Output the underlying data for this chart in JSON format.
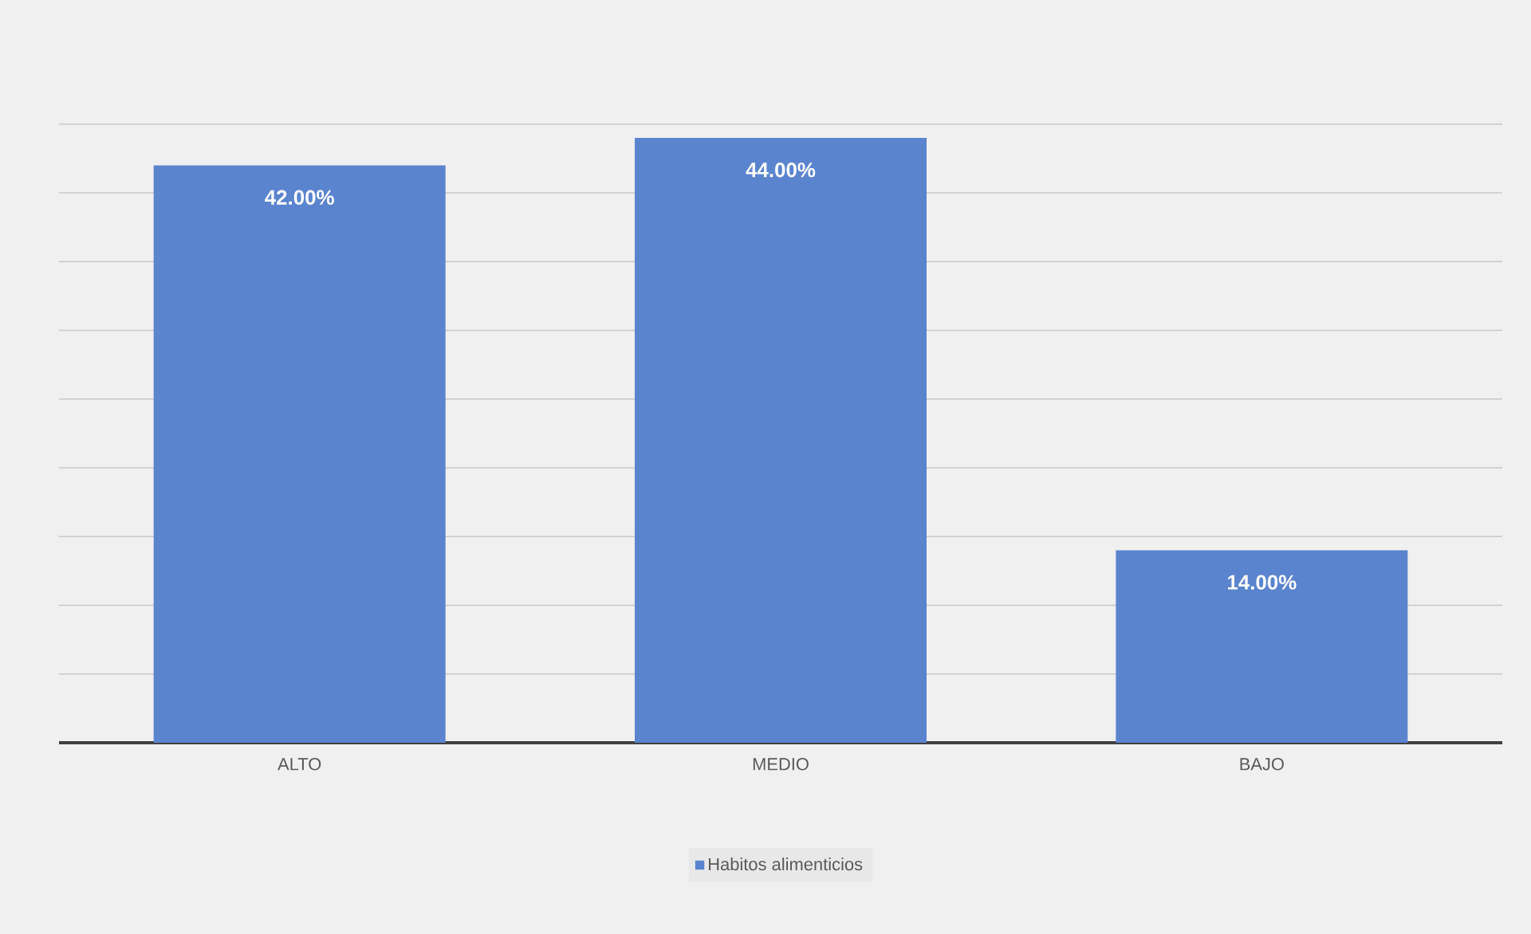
{
  "chart_data": {
    "type": "bar",
    "categories": [
      "ALTO",
      "MEDIO",
      "BAJO"
    ],
    "series": [
      {
        "name": "Habitos alimenticios",
        "color": "#5b84cf",
        "values": [
          42,
          44,
          14
        ],
        "value_labels": [
          "42.00%",
          "44.00%",
          "14.00%"
        ]
      }
    ],
    "tick_labels": "x",
    "grid": "y",
    "legend": "bottom"
  }
}
